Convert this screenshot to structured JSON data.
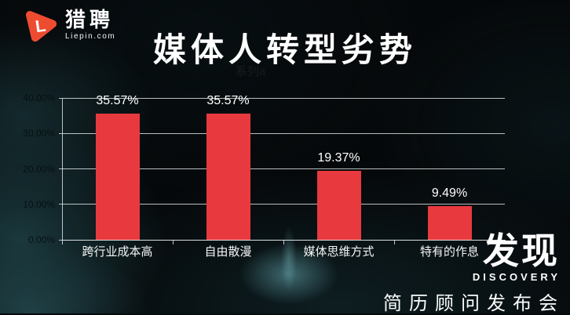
{
  "brand": {
    "name": "猎聘",
    "domain": "Liepin.com",
    "letter": "L",
    "color": "#ee4c31"
  },
  "header": {
    "title": "媒体人转型劣势"
  },
  "chart_data": {
    "type": "bar",
    "title": "媒体人转型劣势",
    "legend": "系列a",
    "legend_position": "top",
    "categories": [
      "跨行业成本高",
      "自由散漫",
      "媒体思维方式",
      "特有的作息"
    ],
    "values": [
      35.57,
      35.57,
      19.37,
      9.49
    ],
    "data_labels": [
      "35.57%",
      "35.57%",
      "19.37%",
      "9.49%"
    ],
    "ylim": [
      0,
      40
    ],
    "ytick_step": 10,
    "ytick_labels": [
      "0.00%",
      "10.00%",
      "20.00%",
      "30.00%",
      "40.00%"
    ],
    "bar_color": "#e83a3e",
    "grid": true
  },
  "footer": {
    "headline": "发现",
    "subhead": "DISCOVERY",
    "tagline": "简历顾问发布会"
  }
}
